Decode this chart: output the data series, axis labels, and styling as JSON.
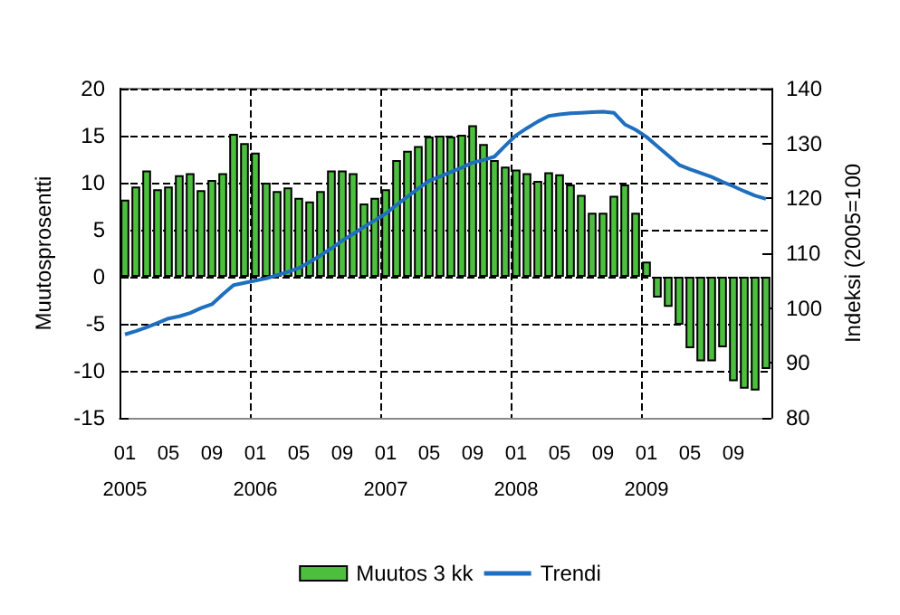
{
  "chart_data": {
    "type": "bar",
    "ylabel": "Muutosprosentti",
    "y2label": "Indeksi (2005=100",
    "categories": [
      "01\n2005",
      null,
      null,
      null,
      "05",
      null,
      null,
      null,
      "09",
      null,
      null,
      null,
      "01\n2006",
      null,
      null,
      null,
      "05",
      null,
      null,
      null,
      "09",
      null,
      null,
      null,
      "01\n2007",
      null,
      null,
      null,
      "05",
      null,
      null,
      null,
      "09",
      null,
      null,
      null,
      "01\n2008",
      null,
      null,
      null,
      "05",
      null,
      null,
      null,
      "09",
      null,
      null,
      null,
      "01\n2009",
      null,
      null,
      null,
      "05",
      null,
      null,
      null,
      "09",
      null,
      null,
      null
    ],
    "series": [
      {
        "name": "Muutos 3 kk",
        "color": "#4dbf3f",
        "values": [
          8.2,
          9.6,
          11.3,
          9.3,
          9.6,
          10.8,
          11,
          9.2,
          10.3,
          11,
          15.2,
          14.2,
          13.2,
          10,
          9.1,
          9.5,
          8.4,
          8,
          9.1,
          11.3,
          11.3,
          11,
          7.8,
          8.4,
          9.3,
          12.4,
          13.4,
          13.9,
          14.9,
          15,
          14.9,
          15.1,
          16.1,
          14.1,
          12.4,
          11.7,
          11.4,
          11,
          10.2,
          11.1,
          10.9,
          9.8,
          8.7,
          6.8,
          6.8,
          8.6,
          9.8,
          6.8,
          1.6,
          -2.2,
          -3.2,
          -5.1,
          -7.6,
          -9,
          -9,
          -7.5,
          -11.1,
          -11.9,
          -12.1,
          -9.8
        ]
      },
      {
        "name": "Trendi",
        "type": "line",
        "axis": "y2",
        "color": "#1f6fbf",
        "values": [
          95.2,
          95.8,
          96.5,
          97.3,
          98.1,
          98.5,
          99.1,
          100,
          100.7,
          102.5,
          104.2,
          104.6,
          105,
          105.4,
          106,
          106.6,
          107.3,
          108.4,
          109.6,
          110.9,
          112.3,
          113.5,
          114.8,
          116,
          117.2,
          118.8,
          120.3,
          121.8,
          123.2,
          124,
          124.8,
          125.6,
          126.5,
          127,
          127.6,
          129.6,
          131.5,
          132.8,
          134,
          135,
          135.3,
          135.5,
          135.6,
          135.7,
          135.8,
          135.6,
          133.5,
          132.5,
          131.2,
          129.5,
          127.8,
          126.1,
          125.3,
          124.6,
          123.9,
          123,
          122.2,
          121.3,
          120.5,
          119.9
        ]
      }
    ],
    "ylim": [
      -15,
      20
    ],
    "yticks": [
      -15,
      -10,
      -5,
      0,
      5,
      10,
      15,
      20
    ],
    "y2lim": [
      80,
      140
    ],
    "y2ticks": [
      80,
      90,
      100,
      110,
      120,
      130,
      140
    ],
    "grid": true,
    "legend": "bottom",
    "marker": "none",
    "line_style": "solid"
  }
}
